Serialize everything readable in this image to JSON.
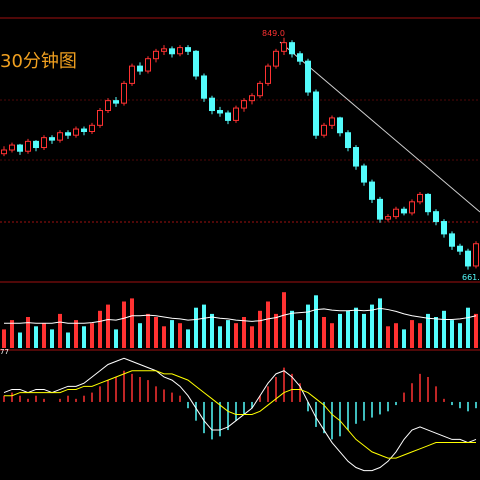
{
  "chart_data": {
    "type": "candlestick",
    "title": "30分钟图",
    "annotations": [
      "849.0",
      "661.",
      "77"
    ],
    "up_color": "#ff3232",
    "down_color": "#54fcfc",
    "ylim": [
      651,
      865
    ],
    "candles": [
      [
        755,
        761,
        753,
        758
      ],
      [
        758,
        764,
        756,
        762
      ],
      [
        762,
        763,
        754,
        757
      ],
      [
        757,
        767,
        755,
        765
      ],
      [
        765,
        766,
        757,
        760
      ],
      [
        760,
        770,
        758,
        768
      ],
      [
        768,
        770,
        763,
        766
      ],
      [
        766,
        774,
        764,
        772
      ],
      [
        772,
        774,
        767,
        770
      ],
      [
        770,
        777,
        768,
        775
      ],
      [
        775,
        777,
        770,
        773
      ],
      [
        773,
        780,
        771,
        778
      ],
      [
        778,
        792,
        776,
        790
      ],
      [
        790,
        800,
        788,
        798
      ],
      [
        798,
        801,
        793,
        796
      ],
      [
        796,
        814,
        794,
        812
      ],
      [
        812,
        828,
        810,
        826
      ],
      [
        826,
        829,
        819,
        822
      ],
      [
        822,
        834,
        820,
        832
      ],
      [
        832,
        840,
        829,
        838
      ],
      [
        838,
        843,
        835,
        840
      ],
      [
        840,
        842,
        833,
        836
      ],
      [
        836,
        843,
        834,
        841
      ],
      [
        841,
        843,
        835,
        838
      ],
      [
        838,
        839,
        815,
        818
      ],
      [
        818,
        820,
        797,
        800
      ],
      [
        800,
        802,
        787,
        790
      ],
      [
        790,
        793,
        785,
        788
      ],
      [
        788,
        790,
        779,
        782
      ],
      [
        782,
        794,
        780,
        792
      ],
      [
        792,
        800,
        789,
        798
      ],
      [
        798,
        804,
        795,
        802
      ],
      [
        802,
        814,
        800,
        812
      ],
      [
        812,
        828,
        810,
        826
      ],
      [
        826,
        840,
        824,
        838
      ],
      [
        838,
        849,
        835,
        845
      ],
      [
        845,
        847,
        833,
        836
      ],
      [
        836,
        838,
        827,
        830
      ],
      [
        830,
        832,
        802,
        805
      ],
      [
        805,
        807,
        767,
        770
      ],
      [
        770,
        780,
        768,
        778
      ],
      [
        778,
        786,
        775,
        784
      ],
      [
        784,
        785,
        769,
        772
      ],
      [
        772,
        774,
        757,
        760
      ],
      [
        760,
        762,
        742,
        745
      ],
      [
        745,
        747,
        729,
        732
      ],
      [
        732,
        734,
        715,
        718
      ],
      [
        718,
        720,
        699,
        702
      ],
      [
        702,
        706,
        700,
        704
      ],
      [
        704,
        712,
        702,
        710
      ],
      [
        710,
        712,
        705,
        707
      ],
      [
        707,
        718,
        705,
        716
      ],
      [
        716,
        724,
        714,
        722
      ],
      [
        722,
        723,
        705,
        708
      ],
      [
        708,
        710,
        697,
        700
      ],
      [
        700,
        702,
        687,
        690
      ],
      [
        690,
        692,
        677,
        680
      ],
      [
        680,
        682,
        673,
        676
      ],
      [
        676,
        678,
        661,
        664
      ],
      [
        664,
        684,
        662,
        682
      ]
    ],
    "volume_ylim": [
      0,
      100
    ],
    "volume": [
      30,
      45,
      25,
      50,
      35,
      40,
      30,
      55,
      25,
      45,
      35,
      40,
      60,
      70,
      30,
      75,
      80,
      40,
      55,
      50,
      35,
      45,
      40,
      30,
      65,
      70,
      55,
      35,
      45,
      40,
      50,
      35,
      60,
      75,
      55,
      90,
      60,
      45,
      70,
      85,
      50,
      40,
      55,
      60,
      65,
      55,
      70,
      80,
      35,
      40,
      30,
      45,
      40,
      55,
      50,
      60,
      45,
      40,
      65,
      55
    ],
    "vol_ma": [
      40,
      40,
      40,
      41,
      40,
      40,
      40,
      42,
      40,
      40,
      40,
      41,
      43,
      46,
      45,
      48,
      52,
      52,
      53,
      52,
      50,
      48,
      47,
      45,
      46,
      48,
      50,
      48,
      47,
      45,
      44,
      43,
      44,
      47,
      49,
      53,
      56,
      57,
      58,
      62,
      63,
      61,
      60,
      60,
      61,
      60,
      61,
      64,
      62,
      59,
      55,
      52,
      50,
      48,
      47,
      46,
      46,
      47,
      49,
      52
    ],
    "macd_ylim": [
      -25,
      16
    ],
    "macd": [
      2,
      3,
      2,
      1,
      2,
      1,
      0,
      1,
      2,
      1,
      2,
      3,
      5,
      7,
      8,
      10,
      9,
      8,
      7,
      5,
      4,
      3,
      2,
      -2,
      -6,
      -10,
      -12,
      -11,
      -9,
      -6,
      -4,
      -2,
      2,
      5,
      8,
      11,
      9,
      6,
      -3,
      -8,
      -10,
      -12,
      -11,
      -9,
      -7,
      -6,
      -5,
      -4,
      -3,
      -1,
      3,
      6,
      9,
      8,
      5,
      1,
      -1,
      -2,
      -3,
      -2
    ],
    "dif": [
      3,
      4,
      4,
      3,
      4,
      4,
      3,
      4,
      5,
      5,
      6,
      8,
      10,
      12,
      13,
      14,
      13,
      12,
      11,
      10,
      8,
      7,
      5,
      2,
      -2,
      -6,
      -9,
      -9,
      -8,
      -6,
      -4,
      -2,
      2,
      6,
      9,
      10,
      8,
      5,
      0,
      -5,
      -9,
      -13,
      -16,
      -19,
      -21,
      -22,
      -22,
      -21,
      -19,
      -16,
      -12,
      -9,
      -8,
      -9,
      -10,
      -11,
      -12,
      -12,
      -13,
      -12
    ],
    "dea": [
      2,
      2,
      3,
      3,
      3,
      3,
      3,
      3,
      4,
      4,
      5,
      5,
      6,
      7,
      8,
      9,
      10,
      10,
      10,
      10,
      9,
      9,
      8,
      7,
      5,
      3,
      1,
      -1,
      -3,
      -4,
      -4,
      -4,
      -3,
      -1,
      1,
      3,
      4,
      4,
      3,
      1,
      -1,
      -4,
      -6,
      -9,
      -12,
      -14,
      -16,
      -17,
      -18,
      -18,
      -17,
      -16,
      -15,
      -14,
      -13,
      -13,
      -13,
      -13,
      -13,
      -13
    ]
  }
}
